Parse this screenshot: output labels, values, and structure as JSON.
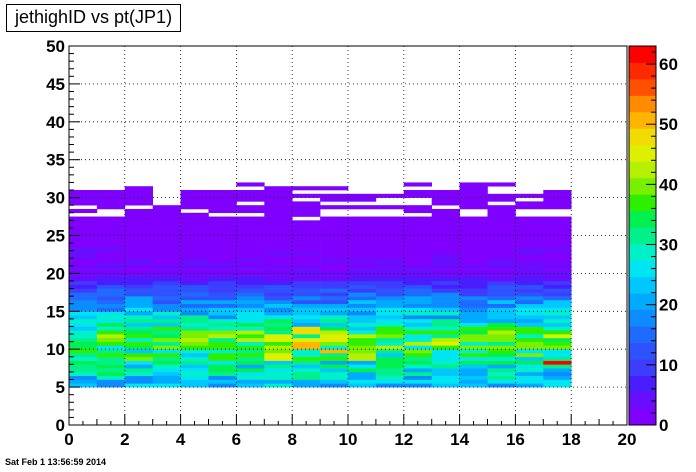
{
  "header": {
    "title": "jethighID vs pt(JP1)",
    "timestamp": "Sat Feb  1 13:56:59 2014"
  },
  "chart_data": {
    "type": "heatmap",
    "title": "jethighID vs pt(JP1)",
    "xlabel": "",
    "ylabel": "",
    "xlim": [
      0,
      20
    ],
    "ylim": [
      0,
      50
    ],
    "x_ticks": [
      "0",
      "2",
      "4",
      "6",
      "8",
      "10",
      "12",
      "14",
      "16",
      "18",
      "20"
    ],
    "y_ticks": [
      "0",
      "5",
      "10",
      "15",
      "20",
      "25",
      "30",
      "35",
      "40",
      "45",
      "50"
    ],
    "colorbar": {
      "range": [
        0,
        63
      ],
      "ticks": [
        "0",
        "10",
        "20",
        "30",
        "40",
        "50",
        "60"
      ],
      "palette": [
        "#7f00ff",
        "#6a0cff",
        "#4a1dff",
        "#3d3dff",
        "#2f52ff",
        "#1f6bff",
        "#0c8cff",
        "#00aaff",
        "#00c8ff",
        "#00e6f0",
        "#00f0c8",
        "#00f08c",
        "#00f050",
        "#2cf000",
        "#78f000",
        "#b4f000",
        "#dcf000",
        "#f0dc00",
        "#ffb400",
        "#ff8c00",
        "#ff5000",
        "#ff2800",
        "#ff0000"
      ]
    },
    "grid": true,
    "bins": {
      "x_start": 0,
      "x_step": 1,
      "x_count": 18,
      "y_start": 5,
      "y_step": 0.5,
      "y_count": 54
    },
    "hot_spots": [
      {
        "x": 17.5,
        "y": 8.3,
        "value": 62
      },
      {
        "x": 9.5,
        "y": 9.7,
        "value": 52
      },
      {
        "x": 8.5,
        "y": 10.5,
        "value": 50
      },
      {
        "x": 8.5,
        "y": 12.5,
        "value": 48
      },
      {
        "x": 9.5,
        "y": 11.2,
        "value": 46
      },
      {
        "x": 7.5,
        "y": 9.1,
        "value": 44
      },
      {
        "x": 10.5,
        "y": 9.0,
        "value": 42
      },
      {
        "x": 3.5,
        "y": 10.2,
        "value": 40
      },
      {
        "x": 14.5,
        "y": 11.5,
        "value": 40
      }
    ]
  }
}
